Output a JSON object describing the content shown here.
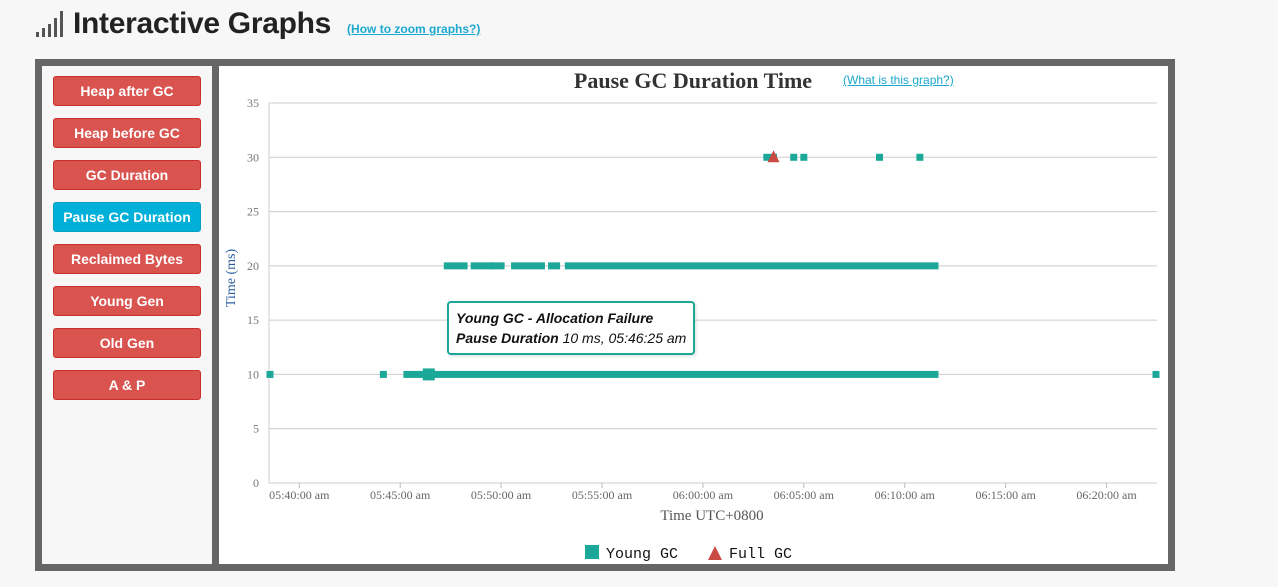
{
  "page": {
    "title": "Interactive Graphs",
    "zoom_link": "(How to zoom graphs?)"
  },
  "sidebar": {
    "items": [
      {
        "label": "Heap after GC",
        "active": false
      },
      {
        "label": "Heap before GC",
        "active": false
      },
      {
        "label": "GC Duration",
        "active": false
      },
      {
        "label": "Pause GC Duration",
        "active": true
      },
      {
        "label": "Reclaimed Bytes",
        "active": false
      },
      {
        "label": "Young Gen",
        "active": false
      },
      {
        "label": "Old Gen",
        "active": false
      },
      {
        "label": "A & P",
        "active": false
      }
    ]
  },
  "colors": {
    "young": "#1ca899",
    "full": "#c94b44",
    "active_button": "#00b0d8",
    "button": "#d9534f"
  },
  "tooltip": {
    "line1": "Young GC - Allocation Failure",
    "label": "Pause Duration",
    "value": "10 ms, 05:46:25 am"
  },
  "chart_data": {
    "type": "scatter",
    "title": "Pause GC Duration Time",
    "help_link": "(What is this graph?)",
    "xlabel": "Time UTC+0800",
    "ylabel": "Time (ms)",
    "ylim": [
      0,
      35
    ],
    "yticks": [
      0,
      5,
      10,
      15,
      20,
      25,
      30,
      35
    ],
    "xlim": [
      "05:38:30",
      "06:22:30"
    ],
    "xticks": [
      "05:40:00",
      "05:45:00",
      "05:50:00",
      "05:55:00",
      "06:00:00",
      "06:05:00",
      "06:10:00",
      "06:15:00",
      "06:20:00"
    ],
    "xtick_labels": [
      "05:40:00 am",
      "05:45:00 am",
      "05:50:00 am",
      "05:55:00 am",
      "06:00:00 am",
      "06:05:00 am",
      "06:10:00 am",
      "06:15:00 am",
      "06:20:00 am"
    ],
    "grid": true,
    "legend": "bottom-center",
    "series": [
      {
        "name": "Young GC",
        "marker": "square",
        "points": [
          {
            "x": "05:38:30",
            "y": 10
          },
          {
            "x": "05:44:10",
            "y": 10
          },
          {
            "x": "05:46:25",
            "y": 10
          }
        ],
        "runs": [
          {
            "from": "05:45:20",
            "to": "06:11:30",
            "y": 10
          },
          {
            "from": "05:47:20",
            "to": "05:48:10",
            "y": 20
          },
          {
            "from": "05:48:40",
            "to": "05:49:30",
            "y": 20
          },
          {
            "from": "05:49:40",
            "to": "05:50:00",
            "y": 20
          },
          {
            "from": "05:50:40",
            "to": "05:51:20",
            "y": 20
          },
          {
            "from": "05:51:40",
            "to": "05:52:00",
            "y": 20
          },
          {
            "from": "05:52:30",
            "to": "05:52:45",
            "y": 20
          },
          {
            "from": "05:53:20",
            "to": "06:11:30",
            "y": 20
          },
          {
            "from": "06:03:10",
            "to": "06:03:30",
            "y": 30
          }
        ],
        "extra_points": [
          {
            "x": "06:04:30",
            "y": 30
          },
          {
            "x": "06:05:00",
            "y": 30
          },
          {
            "x": "06:08:45",
            "y": 30
          },
          {
            "x": "06:10:45",
            "y": 30
          },
          {
            "x": "06:22:30",
            "y": 10
          }
        ]
      },
      {
        "name": "Full GC",
        "marker": "triangle",
        "points": [
          {
            "x": "06:03:30",
            "y": 30
          }
        ]
      }
    ]
  }
}
